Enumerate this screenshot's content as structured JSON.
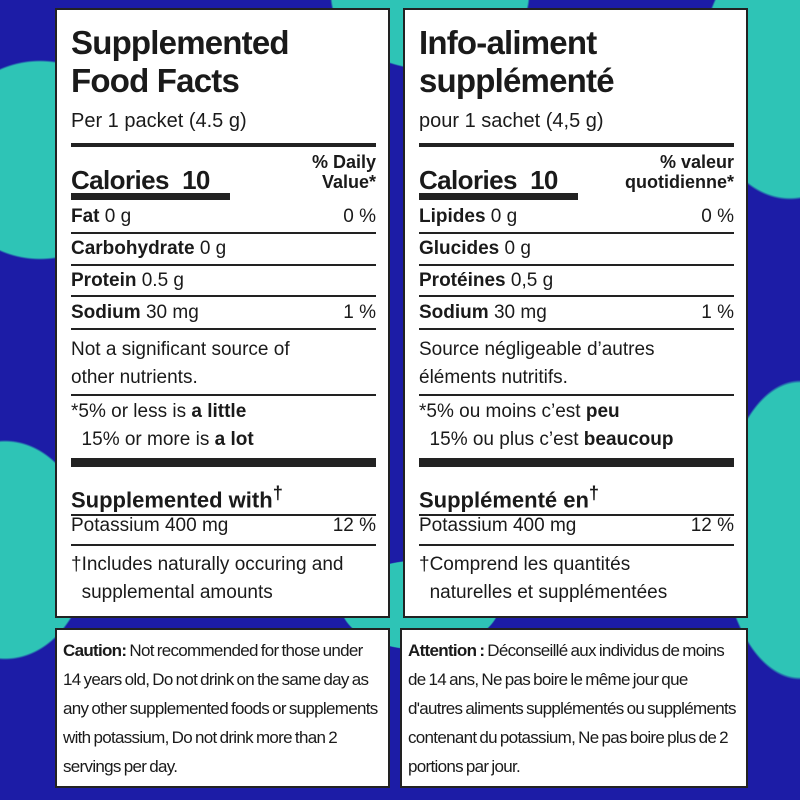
{
  "colors": {
    "background": "#1c1ca6",
    "accent": "#2ec4b6"
  },
  "left": {
    "title1": "Supplemented",
    "title2": "Food Facts",
    "serving": "Per 1 packet (4.5 g)",
    "calories_label": "Calories",
    "calories_value": "10",
    "dv1": "% Daily",
    "dv2": "Value*",
    "rows": [
      {
        "name": "Fat",
        "amount": "0 g",
        "pct": "0 %"
      },
      {
        "name": "Carbohydrate",
        "amount": "0 g",
        "pct": ""
      },
      {
        "name": "Protein",
        "amount": "0.5 g",
        "pct": ""
      },
      {
        "name": "Sodium",
        "amount": "30 mg",
        "pct": "1 %"
      }
    ],
    "note1": "Not a significant source of",
    "note2": "other nutrients.",
    "foot1a": "*5% or less is ",
    "foot1b": "a little",
    "foot2a": " 15% or more is ",
    "foot2b": "a lot",
    "sup_heading": "Supplemented with",
    "dagger": "†",
    "potassium": "Potassium 400 mg",
    "potassium_pct": "12 %",
    "inc1": "†Includes naturally occuring and",
    "inc2": "supplemental amounts",
    "caution_label": "Caution:",
    "caution_text": " Not recommended for those under 14 years old, Do not drink on the same day as any other supplemented foods or supplements with potassium, Do not drink more than 2 servings per day."
  },
  "right": {
    "title1": "Info-aliment",
    "title2": "supplémenté",
    "serving": "pour 1 sachet (4,5 g)",
    "calories_label": "Calories",
    "calories_value": "10",
    "dv1": "% valeur",
    "dv2": "quotidienne*",
    "rows": [
      {
        "name": "Lipides",
        "amount": "0 g",
        "pct": "0 %"
      },
      {
        "name": "Glucides",
        "amount": "0 g",
        "pct": ""
      },
      {
        "name": "Protéines",
        "amount": "0,5 g",
        "pct": ""
      },
      {
        "name": "Sodium",
        "amount": "30 mg",
        "pct": "1 %"
      }
    ],
    "note1": "Source négligeable d’autres",
    "note2": "éléments nutritifs.",
    "foot1a": "*5% ou moins c’est ",
    "foot1b": "peu",
    "foot2a": " 15% ou plus c’est ",
    "foot2b": "beaucoup",
    "sup_heading": "Supplémenté en",
    "dagger": "†",
    "potassium": "Potassium 400 mg",
    "potassium_pct": "12 %",
    "inc1": "†Comprend les quantités",
    "inc2": "naturelles et supplémentées",
    "caution_label": "Attention :",
    "caution_text": " Déconseillé aux individus de moins de 14 ans, Ne pas boire le même jour que d'autres aliments supplémentés ou suppléments contenant du potassium, Ne pas boire plus de 2 portions par jour."
  }
}
